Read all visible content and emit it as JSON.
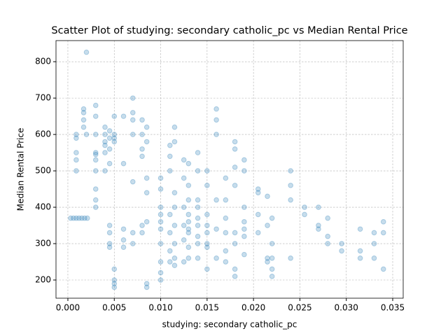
{
  "chart_data": {
    "type": "scatter",
    "title": "Scatter Plot of studying: secondary catholic_pc vs Median Rental Price",
    "x_label": "studying: secondary catholic_pc",
    "y_label": "Median Rental Price",
    "color": "#1f77b4",
    "grid": true,
    "xlim": [
      -0.00128,
      0.03613
    ],
    "ylim": [
      150,
      858
    ],
    "xticks": [
      {
        "value": 0,
        "label": "0.000"
      },
      {
        "value": 0.005,
        "label": "0.005"
      },
      {
        "value": 0.01,
        "label": "0.010"
      },
      {
        "value": 0.015,
        "label": "0.015"
      },
      {
        "value": 0.02,
        "label": "0.020"
      },
      {
        "value": 0.025,
        "label": "0.025"
      },
      {
        "value": 0.03,
        "label": "0.030"
      },
      {
        "value": 0.035,
        "label": "0.035"
      }
    ],
    "yticks": [
      200,
      300,
      400,
      500,
      600,
      700,
      800
    ],
    "x": [
      0.0003,
      0.0006,
      0.0009,
      0.0012,
      0.0015,
      0.0018,
      0.0021,
      0.0009,
      0.0009,
      0.0009,
      0.0009,
      0.0009,
      0.0017,
      0.0017,
      0.0017,
      0.0017,
      0.002,
      0.002,
      0.003,
      0.003,
      0.003,
      0.003,
      0.003,
      0.003,
      0.003,
      0.003,
      0.003,
      0.003,
      0.004,
      0.004,
      0.004,
      0.004,
      0.004,
      0.004,
      0.0045,
      0.0045,
      0.0045,
      0.0045,
      0.0045,
      0.0045,
      0.0045,
      0.0045,
      0.005,
      0.005,
      0.005,
      0.005,
      0.005,
      0.005,
      0.005,
      0.005,
      0.006,
      0.006,
      0.006,
      0.006,
      0.006,
      0.007,
      0.007,
      0.007,
      0.007,
      0.007,
      0.007,
      0.007,
      0.008,
      0.008,
      0.008,
      0.008,
      0.008,
      0.008,
      0.0085,
      0.0085,
      0.0085,
      0.0085,
      0.0085,
      0.0085,
      0.0085,
      0.01,
      0.01,
      0.01,
      0.01,
      0.01,
      0.01,
      0.01,
      0.01,
      0.01,
      0.01,
      0.011,
      0.011,
      0.011,
      0.011,
      0.011,
      0.011,
      0.011,
      0.0115,
      0.0115,
      0.0115,
      0.0115,
      0.0115,
      0.0115,
      0.0115,
      0.0115,
      0.0125,
      0.0125,
      0.0125,
      0.0125,
      0.0125,
      0.0125,
      0.013,
      0.013,
      0.013,
      0.013,
      0.013,
      0.013,
      0.013,
      0.013,
      0.013,
      0.014,
      0.014,
      0.014,
      0.014,
      0.014,
      0.014,
      0.014,
      0.014,
      0.014,
      0.015,
      0.015,
      0.015,
      0.015,
      0.015,
      0.015,
      0.015,
      0.015,
      0.016,
      0.016,
      0.016,
      0.016,
      0.016,
      0.016,
      0.017,
      0.017,
      0.017,
      0.017,
      0.017,
      0.017,
      0.018,
      0.018,
      0.018,
      0.018,
      0.018,
      0.018,
      0.018,
      0.018,
      0.019,
      0.019,
      0.019,
      0.019,
      0.019,
      0.019,
      0.019,
      0.0205,
      0.0205,
      0.0205,
      0.0205,
      0.0215,
      0.0215,
      0.0215,
      0.0215,
      0.022,
      0.022,
      0.022,
      0.022,
      0.022,
      0.024,
      0.024,
      0.024,
      0.024,
      0.0255,
      0.0255,
      0.027,
      0.027,
      0.027,
      0.028,
      0.028,
      0.028,
      0.0295,
      0.0295,
      0.0315,
      0.0315,
      0.0315,
      0.033,
      0.033,
      0.033,
      0.034,
      0.034,
      0.034
    ],
    "y": [
      370,
      370,
      370,
      370,
      370,
      370,
      370,
      600,
      590,
      550,
      530,
      500,
      670,
      660,
      640,
      620,
      826,
      600,
      680,
      650,
      600,
      550,
      545,
      530,
      500,
      450,
      420,
      400,
      620,
      600,
      580,
      570,
      550,
      500,
      610,
      590,
      560,
      520,
      350,
      330,
      300,
      290,
      650,
      600,
      590,
      580,
      230,
      200,
      190,
      180,
      650,
      520,
      340,
      310,
      290,
      700,
      660,
      640,
      600,
      470,
      330,
      300,
      640,
      600,
      560,
      540,
      350,
      330,
      620,
      580,
      480,
      440,
      360,
      190,
      180,
      480,
      450,
      400,
      380,
      360,
      340,
      300,
      250,
      220,
      200,
      570,
      540,
      500,
      380,
      330,
      280,
      250,
      620,
      580,
      440,
      400,
      350,
      300,
      260,
      240,
      530,
      480,
      400,
      350,
      310,
      250,
      520,
      460,
      420,
      380,
      360,
      340,
      330,
      290,
      260,
      550,
      500,
      420,
      400,
      370,
      350,
      320,
      300,
      260,
      500,
      460,
      380,
      350,
      330,
      300,
      290,
      230,
      670,
      640,
      600,
      420,
      340,
      260,
      480,
      420,
      370,
      330,
      280,
      250,
      580,
      560,
      510,
      460,
      330,
      300,
      230,
      210,
      530,
      500,
      400,
      360,
      340,
      320,
      270,
      450,
      440,
      380,
      330,
      430,
      350,
      260,
      250,
      370,
      300,
      260,
      230,
      210,
      500,
      460,
      420,
      260,
      400,
      380,
      400,
      350,
      340,
      370,
      320,
      300,
      300,
      280,
      340,
      280,
      260,
      330,
      300,
      260,
      360,
      330,
      230
    ]
  }
}
